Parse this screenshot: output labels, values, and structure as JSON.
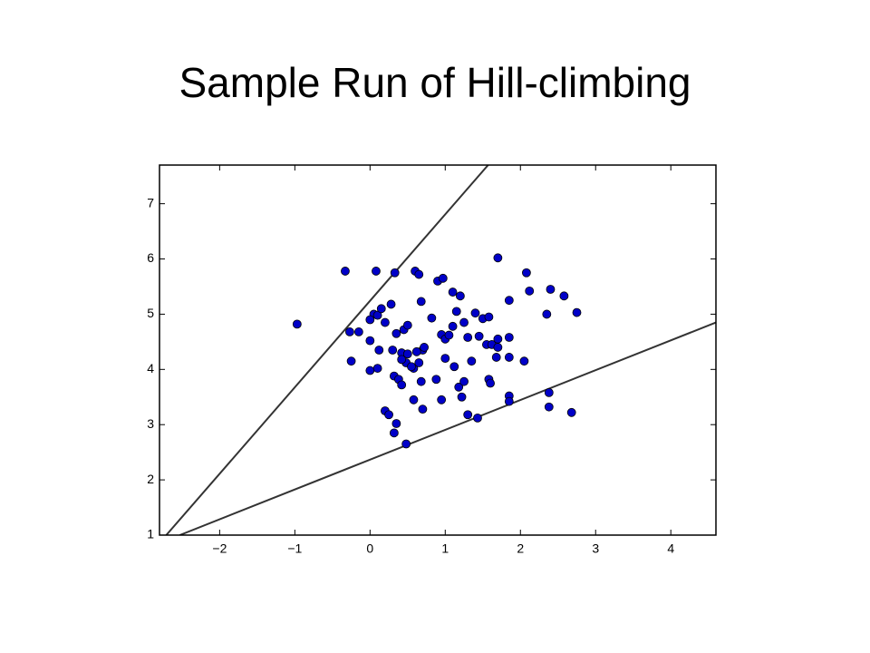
{
  "chart_data": {
    "type": "scatter",
    "title": "Sample Run of Hill-climbing",
    "x": [
      -0.97,
      -0.33,
      0.08,
      0.33,
      0.6,
      0.65,
      0.9,
      0.97,
      1.7,
      2.08,
      2.12,
      2.4,
      2.58,
      2.75,
      2.35,
      1.85,
      -0.27,
      -0.15,
      -0.25,
      0.0,
      0.05,
      0.1,
      0.0,
      0.15,
      0.28,
      0.2,
      0.35,
      0.45,
      0.5,
      0.68,
      0.82,
      0.95,
      1.0,
      1.05,
      1.1,
      1.1,
      1.2,
      1.15,
      1.25,
      1.4,
      1.5,
      1.58,
      1.3,
      1.45,
      1.55,
      1.62,
      1.7,
      1.7,
      1.68,
      1.85,
      1.85,
      2.05,
      0.12,
      0.3,
      0.42,
      0.5,
      0.48,
      0.58,
      0.65,
      0.7,
      0.72,
      0.62,
      0.42,
      0.0,
      0.1,
      0.32,
      0.38,
      0.42,
      0.55,
      0.68,
      0.88,
      1.0,
      1.12,
      1.18,
      1.25,
      1.22,
      1.35,
      1.58,
      1.6,
      1.85,
      1.85,
      0.58,
      0.7,
      0.95,
      0.2,
      0.25,
      0.32,
      0.35,
      0.48,
      1.3,
      1.43,
      2.38,
      2.38,
      2.68
    ],
    "values": [
      4.82,
      5.78,
      5.78,
      5.75,
      5.78,
      5.72,
      5.6,
      5.65,
      6.02,
      5.75,
      5.42,
      5.45,
      5.33,
      5.03,
      5.0,
      5.25,
      4.68,
      4.68,
      4.15,
      4.52,
      5.0,
      4.98,
      4.9,
      5.1,
      5.18,
      4.85,
      4.65,
      4.72,
      4.8,
      5.23,
      4.93,
      4.63,
      4.55,
      4.62,
      4.78,
      5.4,
      5.33,
      5.05,
      4.85,
      5.02,
      4.92,
      4.95,
      4.58,
      4.6,
      4.45,
      4.45,
      4.55,
      4.4,
      4.22,
      4.58,
      4.22,
      4.15,
      4.35,
      4.35,
      4.3,
      4.28,
      4.12,
      4.02,
      4.12,
      4.35,
      4.4,
      4.32,
      4.18,
      3.98,
      4.02,
      3.88,
      3.82,
      3.72,
      4.05,
      3.78,
      3.82,
      4.2,
      4.05,
      3.68,
      3.78,
      3.5,
      4.15,
      3.82,
      3.75,
      3.52,
      3.42,
      3.45,
      3.28,
      3.45,
      3.25,
      3.18,
      2.85,
      3.02,
      2.65,
      3.18,
      3.12,
      3.58,
      3.32,
      3.22
    ],
    "color": "#0000c8",
    "lines": [
      {
        "x": [
          -2.71,
          1.57
        ],
        "values": [
          1,
          7.7
        ],
        "color": "#333333"
      },
      {
        "x": [
          -2.53,
          4.6
        ],
        "values": [
          1,
          4.85
        ],
        "color": "#333333"
      }
    ],
    "xlim": [
      -2.8,
      4.6
    ],
    "ylim": [
      1,
      7.7
    ],
    "xticks": [
      {
        "value": -2,
        "label": "−2"
      },
      {
        "value": -1,
        "label": "−1"
      },
      0,
      1,
      2,
      3,
      4
    ],
    "yticks": [
      1,
      2,
      3,
      4,
      5,
      6,
      7
    ]
  }
}
